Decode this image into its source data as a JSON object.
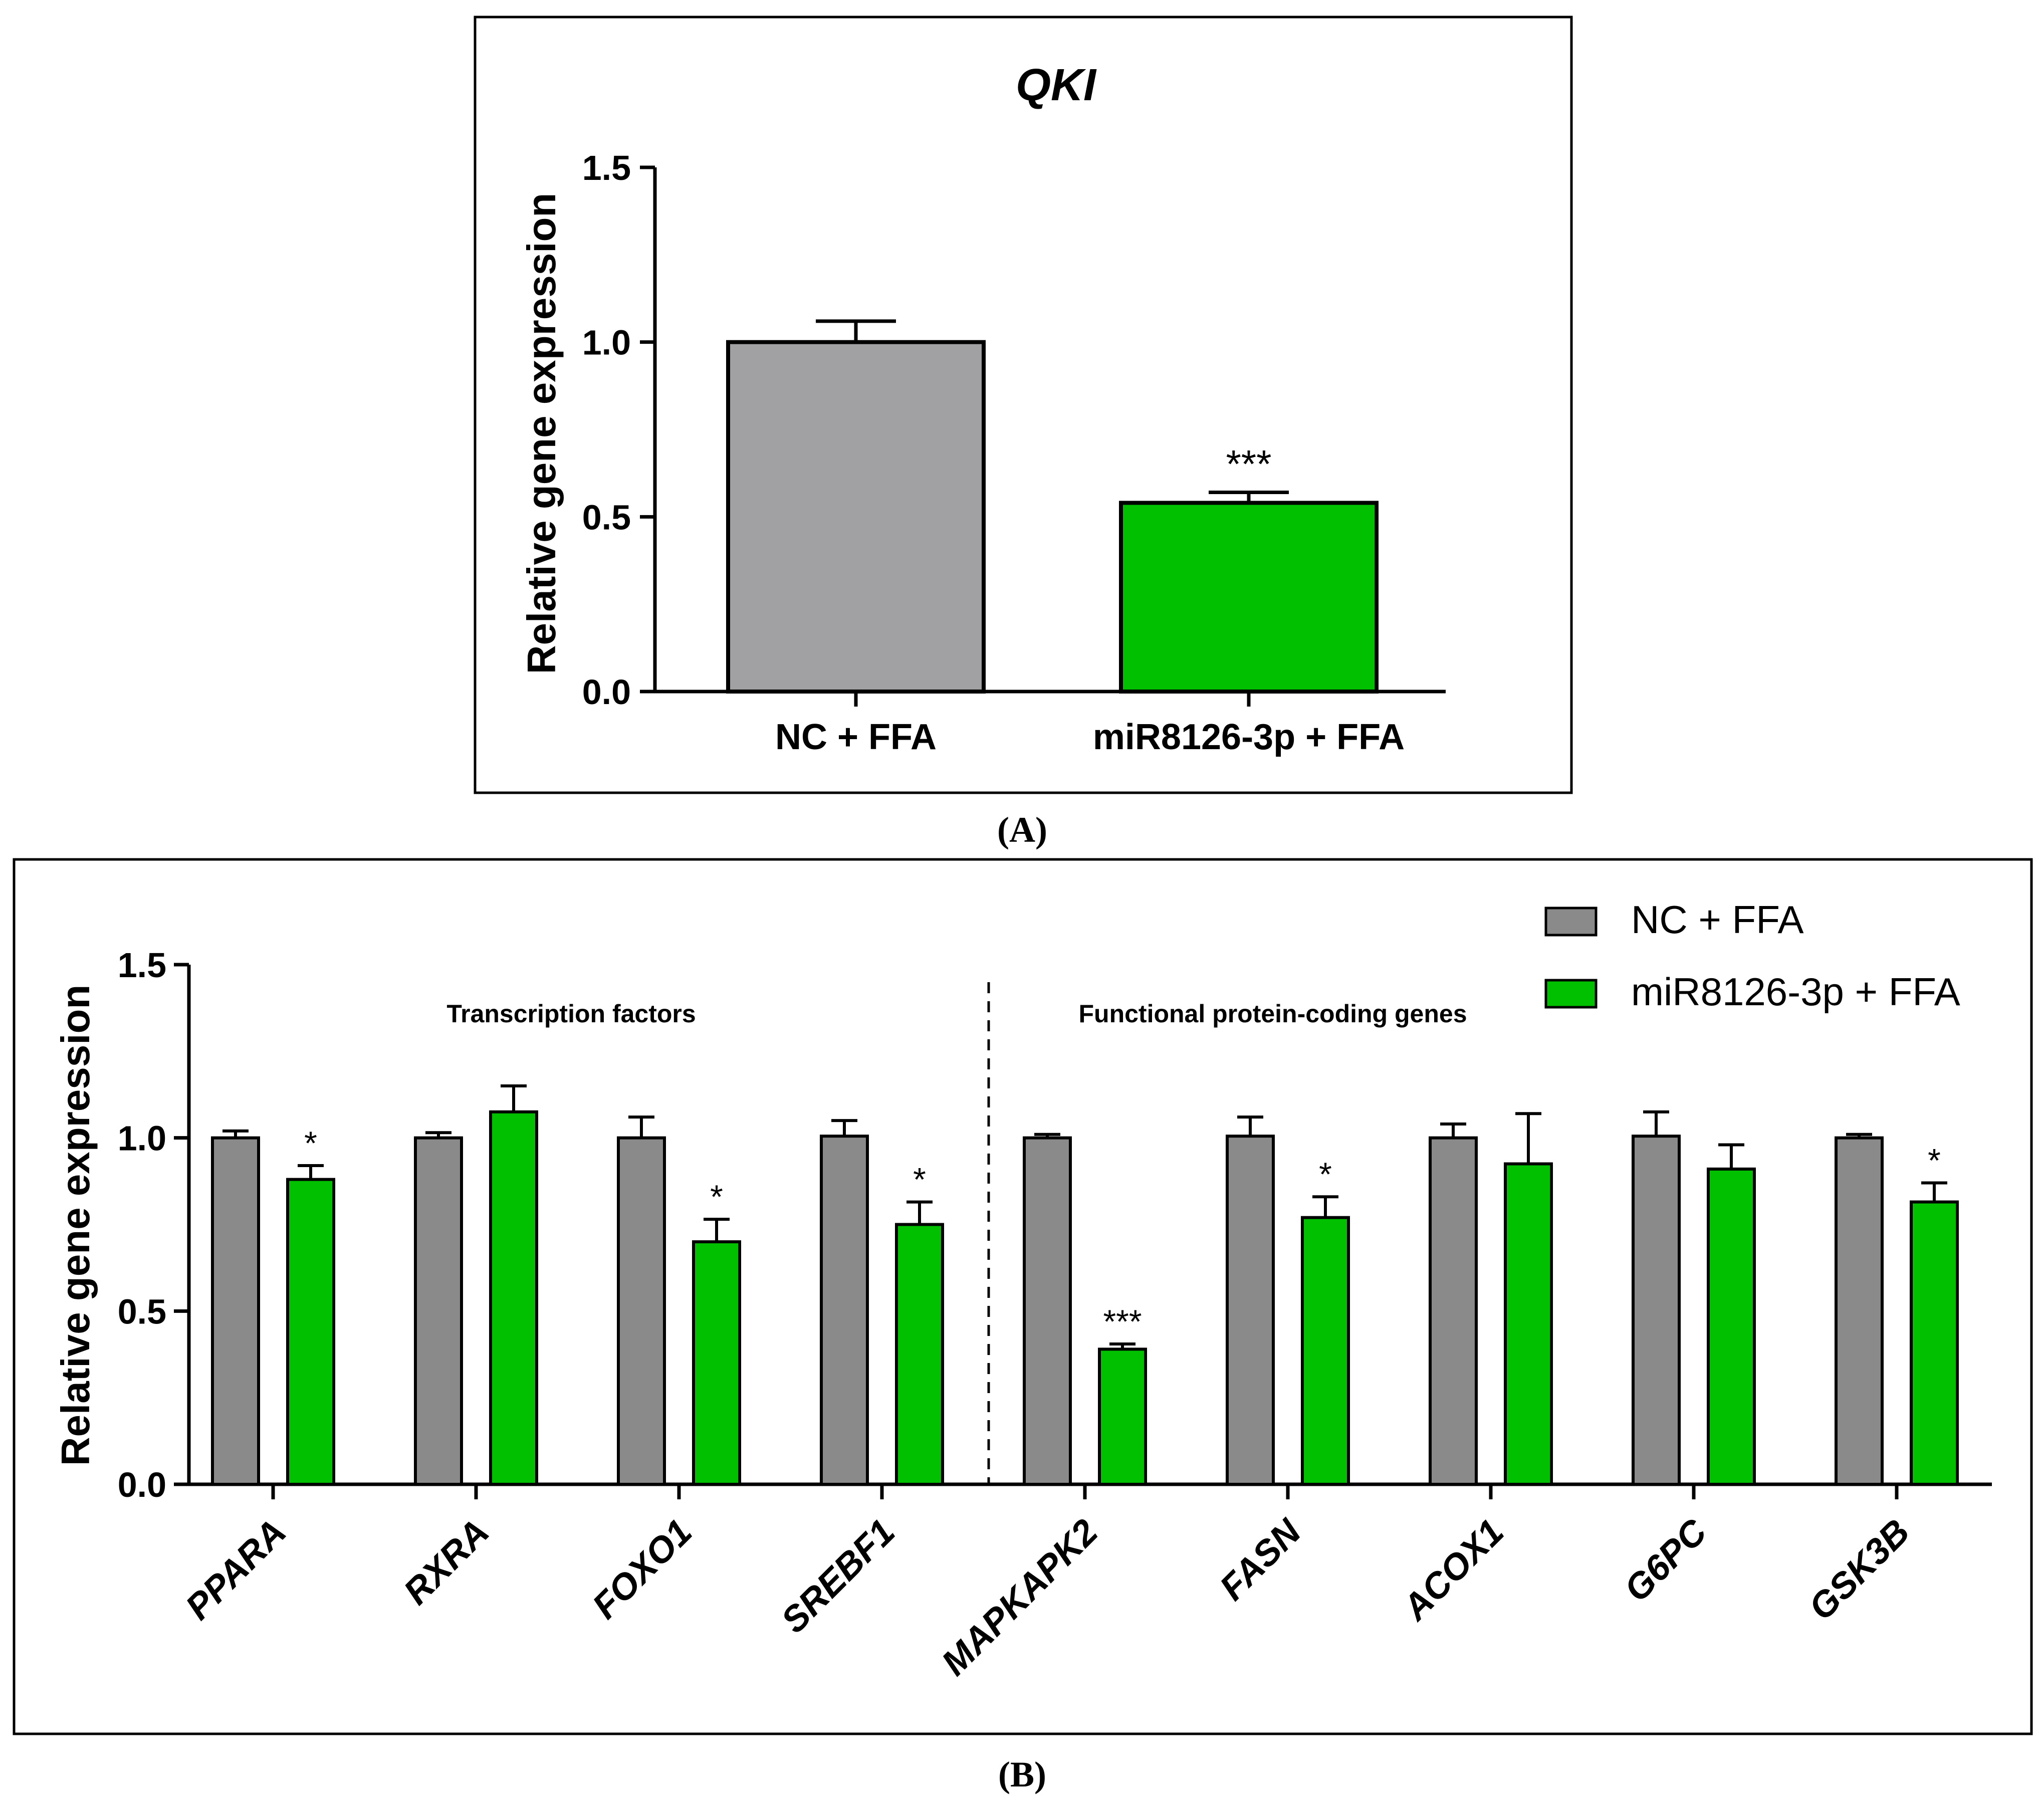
{
  "colors": {
    "gray": "#a1a1a4",
    "gray_b": "#8a8a8a",
    "green": "#00c000",
    "black": "#000000"
  },
  "chart_data": [
    {
      "type": "bar",
      "panel_label": "(A)",
      "title": "QKI",
      "xlabel": "",
      "ylabel": "Relative gene expression",
      "ylim": [
        0,
        1.5
      ],
      "yticks": [
        "0.0",
        "0.5",
        "1.0",
        "1.5"
      ],
      "categories": [
        "NC + FFA",
        "miR8126-3p + FFA"
      ],
      "values": [
        1.0,
        0.54
      ],
      "errors": [
        0.06,
        0.03
      ],
      "significance": [
        "",
        "***"
      ],
      "colors": [
        "#a1a1a4",
        "#00c000"
      ]
    },
    {
      "type": "bar",
      "panel_label": "(B)",
      "xlabel": "",
      "ylabel": "Relative gene expression",
      "ylim": [
        0,
        1.5
      ],
      "yticks": [
        "0.0",
        "0.5",
        "1.0",
        "1.5"
      ],
      "categories": [
        "PPARA",
        "RXRA",
        "FOXO1",
        "SREBF1",
        "MAPKAPK2",
        "FASN",
        "ACOX1",
        "G6PC",
        "GSK3B"
      ],
      "group_labels": [
        "Transcription factors",
        "Functional protein-coding genes"
      ],
      "legend": [
        "NC + FFA",
        "miR8126-3p + FFA"
      ],
      "legend_position": "top-right",
      "series": [
        {
          "name": "NC + FFA",
          "values": [
            1.0,
            1.0,
            1.0,
            1.005,
            1.0,
            1.005,
            1.0,
            1.005,
            1.0
          ],
          "errors": [
            0.02,
            0.015,
            0.06,
            0.045,
            0.01,
            0.055,
            0.04,
            0.07,
            0.01
          ],
          "significance": [
            "",
            "",
            "",
            "",
            "",
            "",
            "",
            "",
            ""
          ]
        },
        {
          "name": "miR8126-3p + FFA",
          "values": [
            0.88,
            1.075,
            0.7,
            0.75,
            0.39,
            0.77,
            0.925,
            0.91,
            0.815
          ],
          "errors": [
            0.04,
            0.075,
            0.065,
            0.065,
            0.015,
            0.06,
            0.145,
            0.07,
            0.055
          ],
          "significance": [
            "*",
            "",
            "*",
            "*",
            "***",
            "*",
            "",
            "",
            "*"
          ]
        }
      ]
    }
  ]
}
